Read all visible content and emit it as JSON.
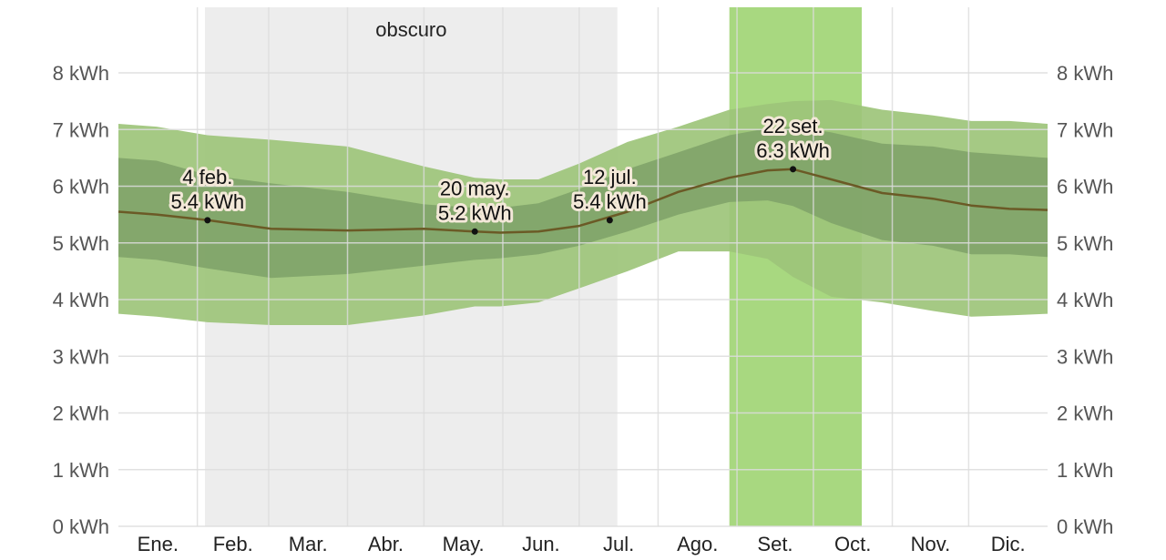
{
  "chart_data": {
    "type": "area",
    "unit": "kWh",
    "x_domain": [
      0,
      365
    ],
    "ylim": [
      0,
      8
    ],
    "y_ticks": [
      {
        "value": 0,
        "label": "0 kWh"
      },
      {
        "value": 1,
        "label": "1 kWh"
      },
      {
        "value": 2,
        "label": "2 kWh"
      },
      {
        "value": 3,
        "label": "3 kWh"
      },
      {
        "value": 4,
        "label": "4 kWh"
      },
      {
        "value": 5,
        "label": "5 kWh"
      },
      {
        "value": 6,
        "label": "6 kWh"
      },
      {
        "value": 7,
        "label": "7 kWh"
      },
      {
        "value": 8,
        "label": "8 kWh"
      }
    ],
    "months": [
      {
        "label": "Ene.",
        "start": 0
      },
      {
        "label": "Feb.",
        "start": 31
      },
      {
        "label": "Mar.",
        "start": 59
      },
      {
        "label": "Abr.",
        "start": 90
      },
      {
        "label": "May.",
        "start": 120
      },
      {
        "label": "Jun.",
        "start": 151
      },
      {
        "label": "Jul.",
        "start": 181
      },
      {
        "label": "Ago.",
        "start": 212
      },
      {
        "label": "Set.",
        "start": 243
      },
      {
        "label": "Oct.",
        "start": 273
      },
      {
        "label": "Nov.",
        "start": 304
      },
      {
        "label": "Dic.",
        "start": 334
      }
    ],
    "dark_period": {
      "label": "obscuro",
      "start": 34,
      "end": 196
    },
    "highlight_period": {
      "start": 240,
      "end": 292,
      "color": "#a8d880"
    },
    "days": [
      0,
      15,
      35,
      60,
      90,
      120,
      140,
      150,
      165,
      181,
      200,
      220,
      240,
      255,
      265,
      280,
      300,
      320,
      335,
      350,
      365
    ],
    "median": [
      5.55,
      5.5,
      5.4,
      5.25,
      5.22,
      5.25,
      5.2,
      5.18,
      5.2,
      5.3,
      5.55,
      5.9,
      6.15,
      6.28,
      6.3,
      6.12,
      5.88,
      5.78,
      5.66,
      5.6,
      5.58
    ],
    "p25": [
      4.75,
      4.7,
      4.55,
      4.38,
      4.45,
      4.6,
      4.7,
      4.73,
      4.8,
      4.95,
      5.2,
      5.5,
      5.72,
      5.75,
      5.65,
      5.35,
      5.05,
      4.95,
      4.8,
      4.8,
      4.75
    ],
    "p75": [
      6.5,
      6.45,
      6.2,
      6.05,
      5.9,
      5.68,
      5.62,
      5.62,
      5.7,
      5.95,
      6.3,
      6.6,
      6.9,
      7.02,
      7.05,
      6.95,
      6.75,
      6.7,
      6.6,
      6.55,
      6.5
    ],
    "p10": [
      3.75,
      3.7,
      3.6,
      3.55,
      3.55,
      3.72,
      3.88,
      3.88,
      3.95,
      4.2,
      4.5,
      4.85,
      4.85,
      4.72,
      4.4,
      4.05,
      3.95,
      3.8,
      3.7,
      3.72,
      3.75
    ],
    "p90": [
      7.1,
      7.05,
      6.9,
      6.82,
      6.7,
      6.35,
      6.15,
      6.12,
      6.12,
      6.4,
      6.78,
      7.05,
      7.35,
      7.45,
      7.5,
      7.52,
      7.35,
      7.25,
      7.15,
      7.15,
      7.1
    ],
    "colors": {
      "band_outer": "#9dc47a",
      "band_inner": "#82a56a",
      "median_line": "#6b5a26",
      "dark_period": "#ededed",
      "grid": "#dcdcdc"
    },
    "annotations": [
      {
        "day": 35,
        "value": 5.4,
        "date": "4 feb.",
        "text": "5.4 kWh"
      },
      {
        "day": 140,
        "value": 5.2,
        "date": "20 may.",
        "text": "5.2 kWh"
      },
      {
        "day": 193,
        "value": 5.4,
        "date": "12 jul.",
        "text": "5.4 kWh"
      },
      {
        "day": 265,
        "value": 6.3,
        "date": "22 set.",
        "text": "6.3 kWh"
      }
    ]
  }
}
